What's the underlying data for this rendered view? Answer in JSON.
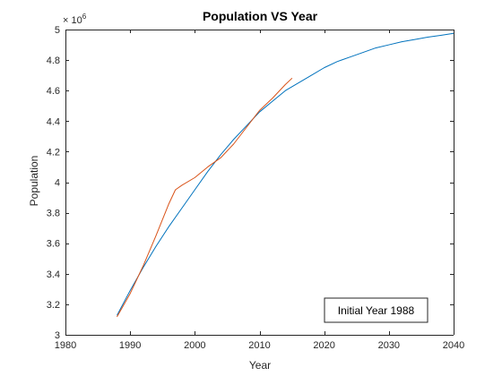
{
  "chart_data": {
    "type": "line",
    "title": "Population VS Year",
    "xlabel": "Year",
    "ylabel": "Population",
    "y_multiplier_base": "× 10",
    "y_multiplier_exponent": "6",
    "y_multiplier": 1000000,
    "xlim": [
      1980,
      2040
    ],
    "ylim": [
      3,
      5
    ],
    "x_ticks": [
      1980,
      1990,
      2000,
      2010,
      2020,
      2030,
      2040
    ],
    "x_tick_labels": [
      "1980",
      "1990",
      "2000",
      "2010",
      "2020",
      "2030",
      "2040"
    ],
    "y_ticks": [
      3,
      3.2,
      3.4,
      3.6,
      3.8,
      4,
      4.2,
      4.4,
      4.6,
      4.8,
      5
    ],
    "y_tick_labels": [
      "3",
      "3.2",
      "3.4",
      "3.6",
      "3.8",
      "4",
      "4.2",
      "4.4",
      "4.6",
      "4.8",
      "5"
    ],
    "grid": false,
    "annotation": "Initial Year 1988",
    "annotation_position": "bottom-right",
    "series": [
      {
        "color": "#0072BD",
        "x": [
          1988,
          1990,
          1992,
          1994,
          1996,
          1998,
          2000,
          2002,
          2004,
          2006,
          2008,
          2010,
          2012,
          2014,
          2016,
          2018,
          2020,
          2022,
          2024,
          2026,
          2028,
          2030,
          2032,
          2034,
          2036,
          2038,
          2040
        ],
        "y": [
          3.13,
          3.29,
          3.44,
          3.58,
          3.71,
          3.83,
          3.95,
          4.07,
          4.18,
          4.28,
          4.37,
          4.46,
          4.53,
          4.6,
          4.65,
          4.7,
          4.75,
          4.79,
          4.82,
          4.85,
          4.88,
          4.9,
          4.92,
          4.935,
          4.95,
          4.962,
          4.975
        ]
      },
      {
        "color": "#D95319",
        "x": [
          1988,
          1990,
          1992,
          1994,
          1996,
          1997,
          1998,
          2000,
          2002,
          2004,
          2006,
          2008,
          2010,
          2012,
          2014,
          2015
        ],
        "y": [
          3.12,
          3.27,
          3.45,
          3.65,
          3.86,
          3.95,
          3.98,
          4.03,
          4.1,
          4.16,
          4.25,
          4.36,
          4.47,
          4.55,
          4.64,
          4.68
        ]
      }
    ]
  }
}
